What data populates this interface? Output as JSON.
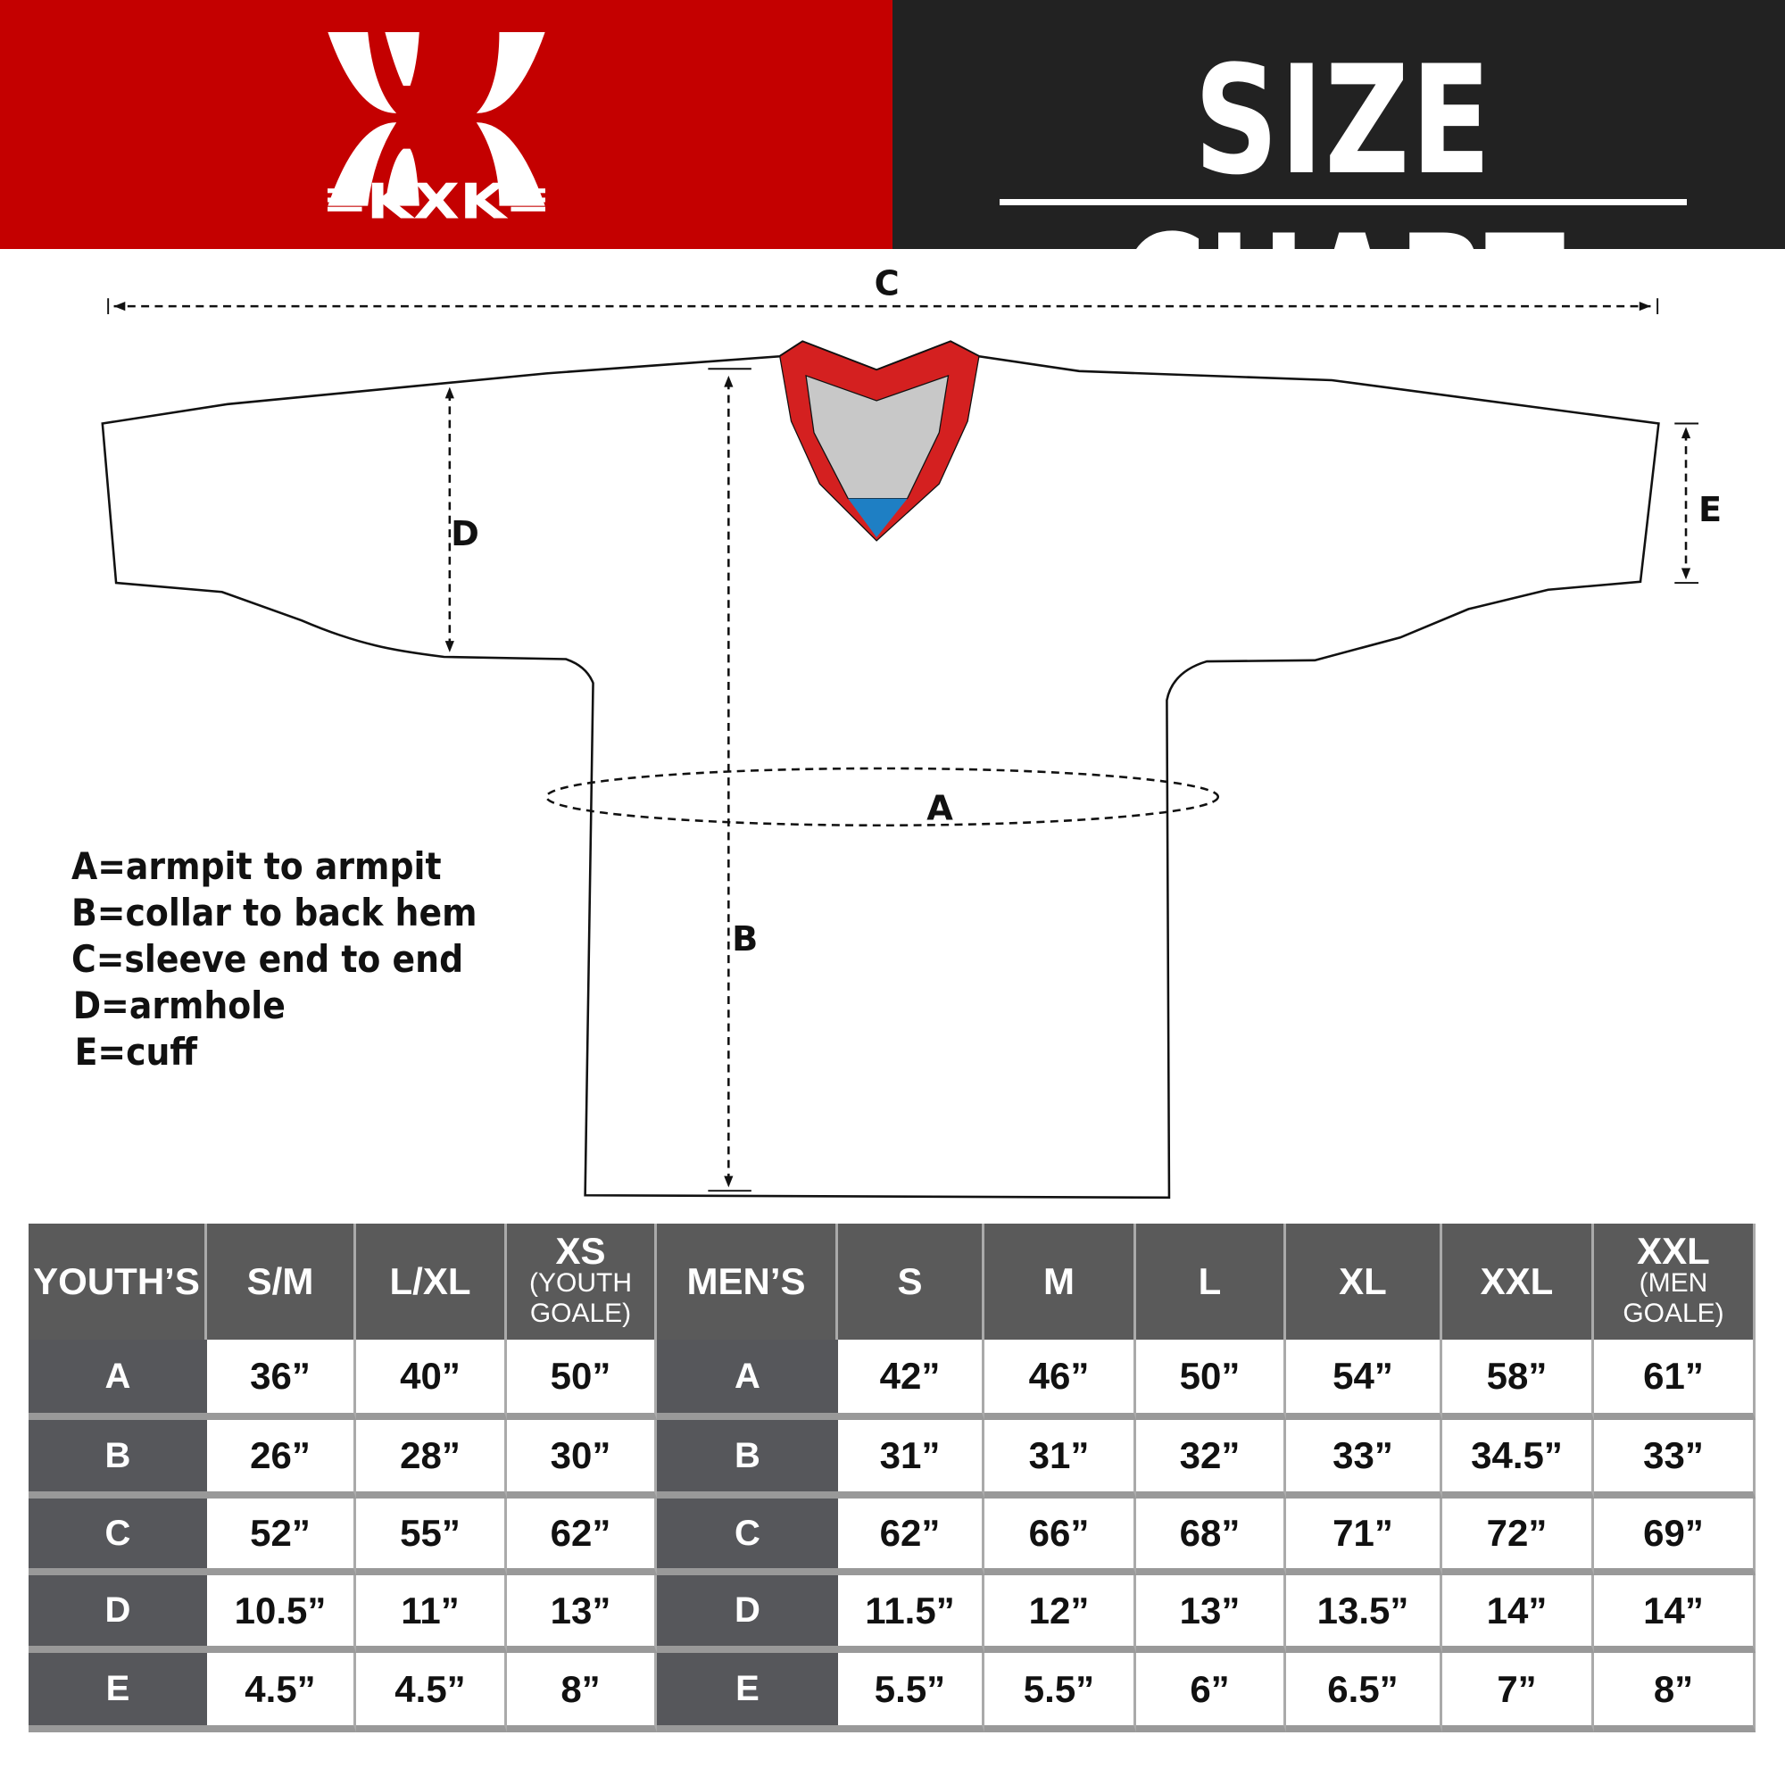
{
  "header": {
    "brand": "KXK",
    "title": "SIZE CHART",
    "colors": {
      "brand_red": "#c40000",
      "title_bg": "#222222",
      "collar_red": "#d42020",
      "collar_gray": "#c8c8c8",
      "collar_blue": "#1e7fc4"
    }
  },
  "diagram": {
    "labels": {
      "a": "A",
      "b": "B",
      "c": "C",
      "d": "D",
      "e": "E"
    },
    "legend": [
      "A=armpit to armpit",
      "B=collar to back hem",
      "C=sleeve end to end",
      "D=armhole",
      "E=cuff"
    ]
  },
  "table": {
    "headers": [
      {
        "main": "YOUTH’S",
        "sub": ""
      },
      {
        "main": "S/M",
        "sub": ""
      },
      {
        "main": "L/XL",
        "sub": ""
      },
      {
        "main": "XS",
        "sub": "(YOUTH GOALE)"
      },
      {
        "main": "MEN’S",
        "sub": ""
      },
      {
        "main": "S",
        "sub": ""
      },
      {
        "main": "M",
        "sub": ""
      },
      {
        "main": "L",
        "sub": ""
      },
      {
        "main": "XL",
        "sub": ""
      },
      {
        "main": "XXL",
        "sub": ""
      },
      {
        "main": "XXL",
        "sub": "(MEN GOALE)"
      }
    ],
    "rows": [
      {
        "label": "A",
        "youth": [
          "36”",
          "40”",
          "50”"
        ],
        "men": [
          "42”",
          "46”",
          "50”",
          "54”",
          "58”",
          "61”"
        ]
      },
      {
        "label": "B",
        "youth": [
          "26”",
          "28”",
          "30”"
        ],
        "men": [
          "31”",
          "31”",
          "32”",
          "33”",
          "34.5”",
          "33”"
        ]
      },
      {
        "label": "C",
        "youth": [
          "52”",
          "55”",
          "62”"
        ],
        "men": [
          "62”",
          "66”",
          "68”",
          "71”",
          "72”",
          "69”"
        ]
      },
      {
        "label": "D",
        "youth": [
          "10.5”",
          "11”",
          "13”"
        ],
        "men": [
          "11.5”",
          "12”",
          "13”",
          "13.5”",
          "14”",
          "14”"
        ]
      },
      {
        "label": "E",
        "youth": [
          "4.5”",
          "4.5”",
          "8”"
        ],
        "men": [
          "5.5”",
          "5.5”",
          "6”",
          "6.5”",
          "7”",
          "8”"
        ]
      }
    ]
  }
}
